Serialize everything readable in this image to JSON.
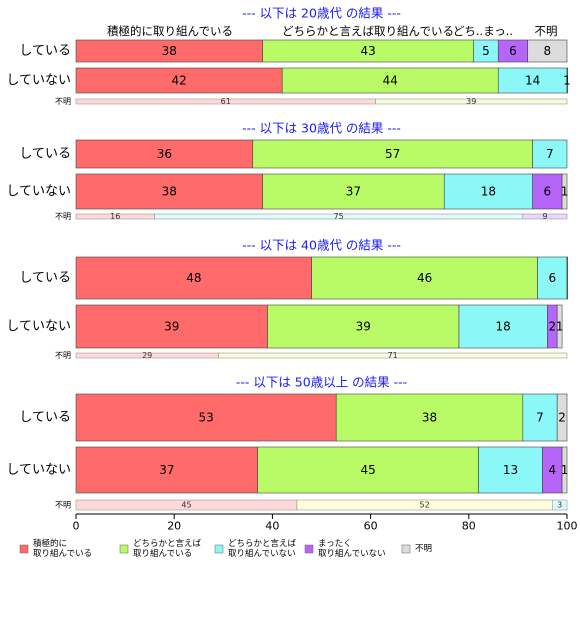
{
  "chart_data": {
    "type": "bar",
    "orientation": "horizontal",
    "stacked": true,
    "xlim": [
      0,
      100
    ],
    "xticks": [
      "0",
      "20",
      "40",
      "60",
      "80",
      "100"
    ],
    "grid": false,
    "legend_position": "bottom",
    "series": [
      {
        "name": "積極的に\n取り組んでいる",
        "color": "#ff6b6b"
      },
      {
        "name": "どちらかと言えば\n取り組んでいる",
        "color": "#b9fb67"
      },
      {
        "name": "どちらかと言えば\n取り組んでいない",
        "color": "#8bf7f7"
      },
      {
        "name": "まったく\n取り組んでいない",
        "color": "#b565f7"
      },
      {
        "name": "不明",
        "color": "#dcdcdc"
      }
    ],
    "top_category_labels": [
      "積極的に取り組んでいる",
      "どちらかと言えば取り組んでいる",
      "どち..まっ..",
      "不明"
    ],
    "panels": [
      {
        "title": "--- 以下は 20歳代 の結果 ---",
        "rows": [
          {
            "label": "している",
            "values": [
              38,
              43,
              5,
              6,
              8
            ]
          },
          {
            "label": "していない",
            "values": [
              42,
              44,
              14,
              1,
              0
            ]
          }
        ],
        "unknown": {
          "label": "不明",
          "values": [
            61,
            39
          ],
          "colors": [
            "#ffd9d9",
            "#f6fddc"
          ]
        }
      },
      {
        "title": "--- 以下は 30歳代 の結果 ---",
        "rows": [
          {
            "label": "している",
            "values": [
              36,
              57,
              7,
              0,
              0
            ]
          },
          {
            "label": "していない",
            "values": [
              38,
              37,
              18,
              6,
              1
            ]
          }
        ],
        "unknown": {
          "label": "不明",
          "values": [
            16,
            75,
            9
          ],
          "colors": [
            "#ffd9d9",
            "#ddfbfb",
            "#ead7fb"
          ]
        }
      },
      {
        "title": "--- 以下は 40歳代 の結果 ---",
        "rows": [
          {
            "label": "している",
            "values": [
              48,
              46,
              6,
              0.5,
              0
            ]
          },
          {
            "label": "していない",
            "values": [
              39,
              39,
              18,
              2,
              1
            ]
          }
        ],
        "unknown": {
          "label": "不明",
          "values": [
            29,
            71
          ],
          "colors": [
            "#ffd9d9",
            "#f6fddc"
          ]
        }
      },
      {
        "title": "--- 以下は 50歳以上 の結果 ---",
        "rows": [
          {
            "label": "している",
            "values": [
              53,
              38,
              7,
              0,
              2
            ]
          },
          {
            "label": "していない",
            "values": [
              37,
              45,
              13,
              4,
              1
            ]
          }
        ],
        "unknown": {
          "label": "不明",
          "values": [
            45,
            52,
            3
          ],
          "colors": [
            "#ffd9d9",
            "#fdfddb",
            "#ddfbfb"
          ]
        }
      }
    ]
  }
}
